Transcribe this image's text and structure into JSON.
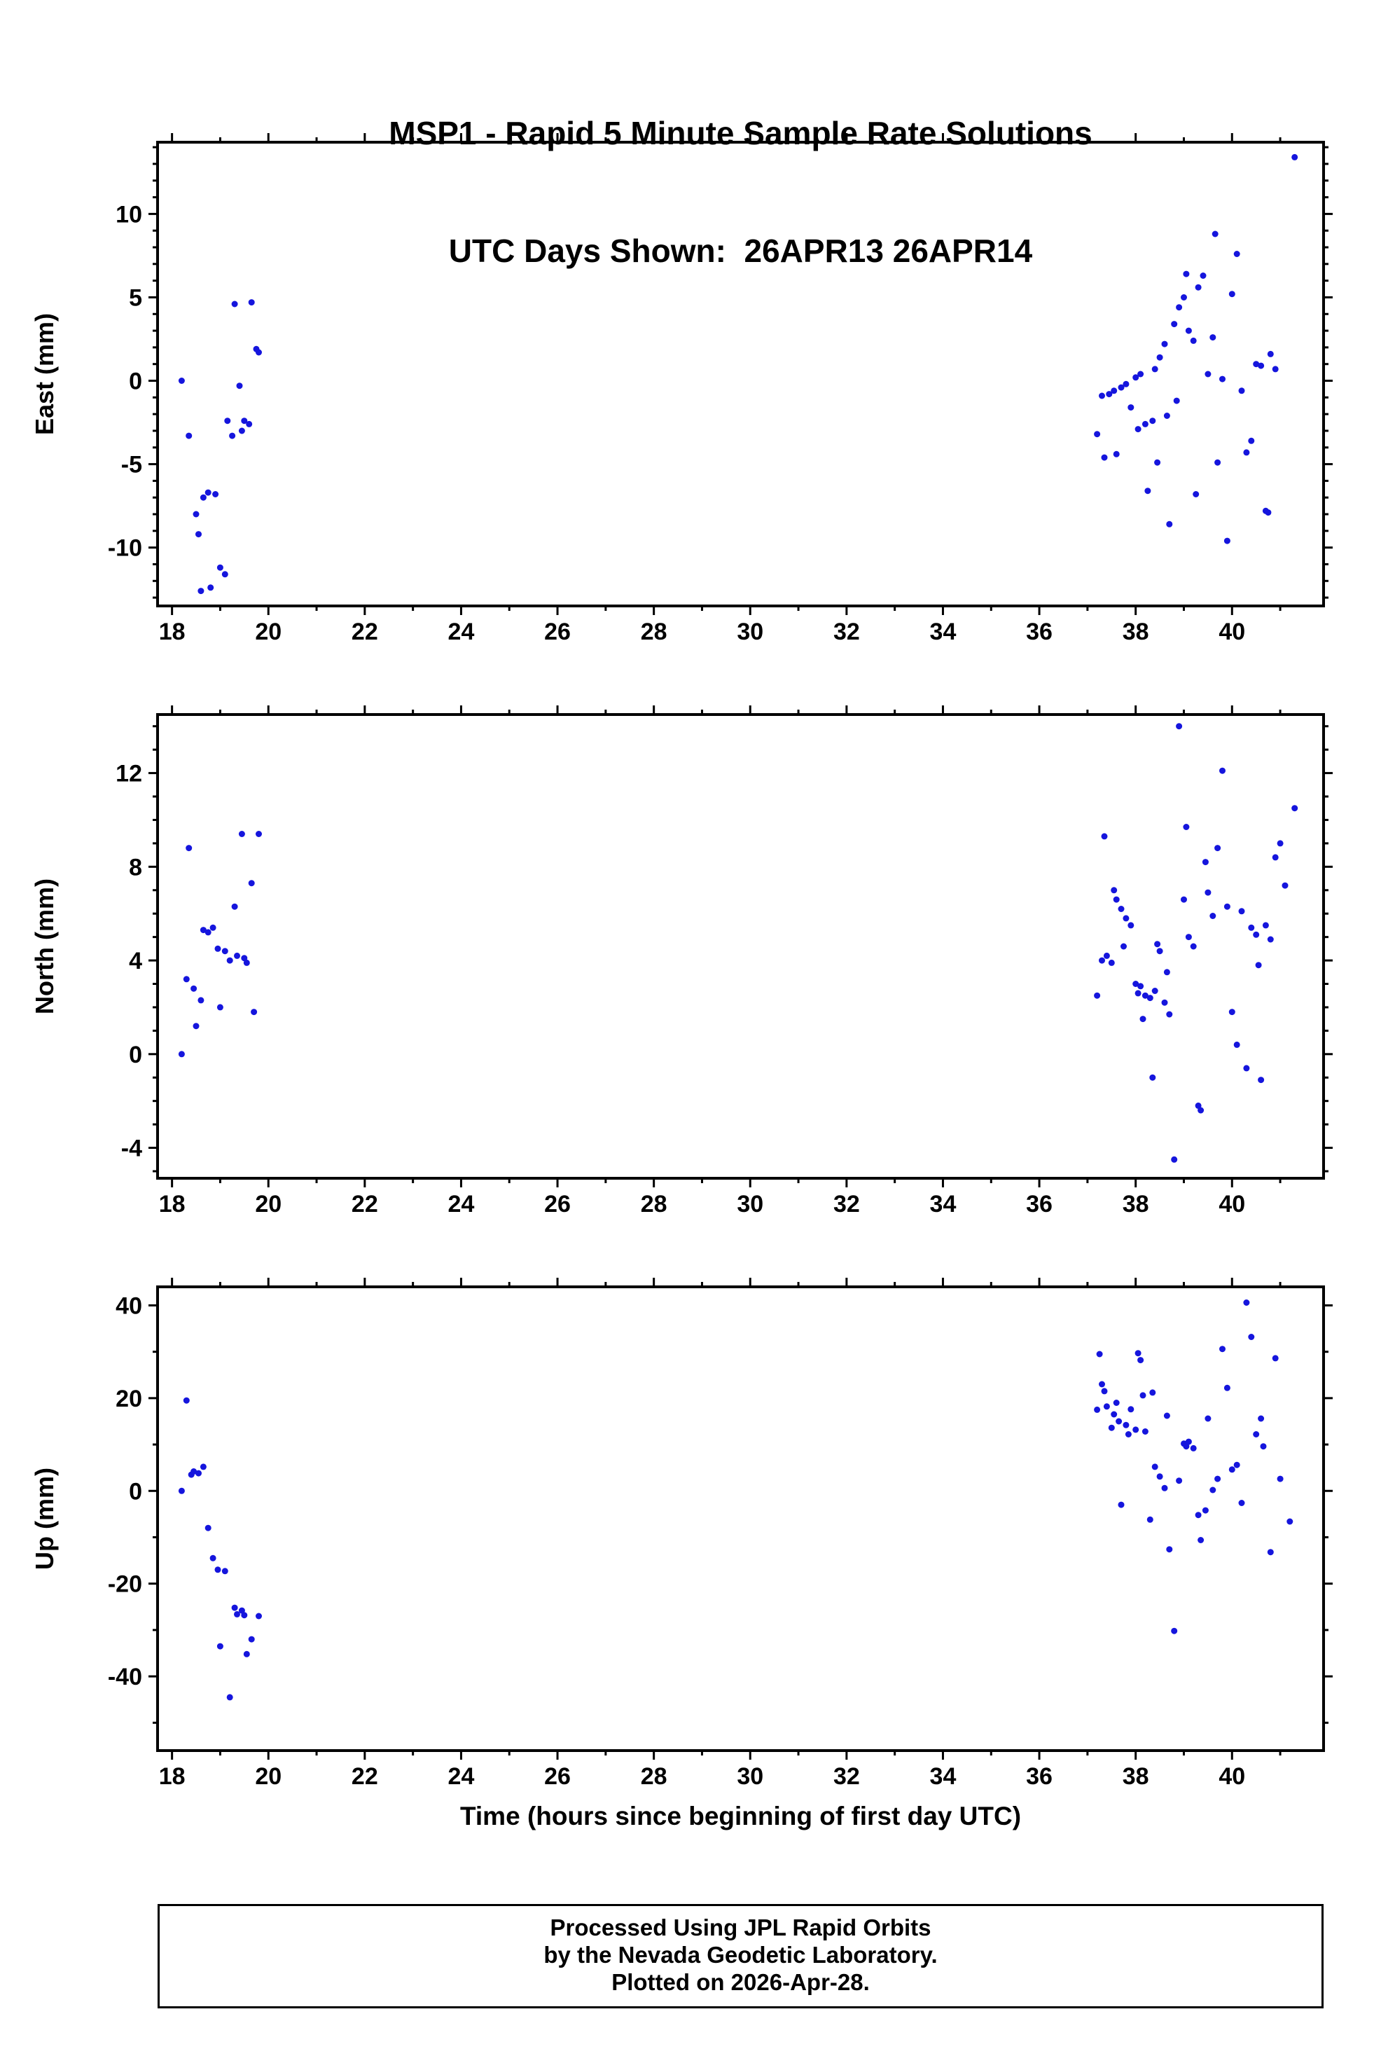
{
  "title": {
    "line1": "MSP1 - Rapid 5 Minute Sample Rate Solutions",
    "line2": "UTC Days Shown:  26APR13 26APR14"
  },
  "xlabel": "Time (hours since beginning of first day UTC)",
  "footer": {
    "line1": "Processed Using JPL Rapid Orbits",
    "line2": "by the Nevada Geodetic Laboratory.",
    "line3": "Plotted on 2026-Apr-28."
  },
  "point_color": "#1515dd",
  "frame_color": "#000000",
  "chart_data": [
    {
      "type": "scatter",
      "title": "MSP1 East component",
      "xlabel": "Time (hours since beginning of first day UTC)",
      "ylabel": "East (mm)",
      "xlim": [
        17.7,
        41.9
      ],
      "ylim": [
        -13.5,
        14.3
      ],
      "xticks": [
        18,
        20,
        22,
        24,
        26,
        28,
        30,
        32,
        34,
        36,
        38,
        40
      ],
      "yticks": [
        -10,
        -5,
        0,
        5,
        10
      ],
      "x_minor": 1,
      "y_minor": 1,
      "grid": false,
      "points": [
        [
          18.2,
          0.0
        ],
        [
          18.35,
          -3.3
        ],
        [
          18.5,
          -8.0
        ],
        [
          18.55,
          -9.2
        ],
        [
          18.6,
          -12.6
        ],
        [
          18.65,
          -7.0
        ],
        [
          18.75,
          -6.7
        ],
        [
          18.8,
          -12.4
        ],
        [
          18.9,
          -6.8
        ],
        [
          19.0,
          -11.2
        ],
        [
          19.1,
          -11.6
        ],
        [
          19.15,
          -2.4
        ],
        [
          19.25,
          -3.3
        ],
        [
          19.3,
          4.6
        ],
        [
          19.4,
          -0.3
        ],
        [
          19.45,
          -3.0
        ],
        [
          19.5,
          -2.4
        ],
        [
          19.6,
          -2.6
        ],
        [
          19.65,
          4.7
        ],
        [
          19.75,
          1.9
        ],
        [
          19.8,
          1.7
        ],
        [
          37.2,
          -3.2
        ],
        [
          37.3,
          -0.9
        ],
        [
          37.35,
          -4.6
        ],
        [
          37.45,
          -0.8
        ],
        [
          37.55,
          -0.6
        ],
        [
          37.6,
          -4.4
        ],
        [
          37.7,
          -0.4
        ],
        [
          37.8,
          -0.2
        ],
        [
          37.9,
          -1.6
        ],
        [
          38.0,
          0.2
        ],
        [
          38.05,
          -2.9
        ],
        [
          38.1,
          0.4
        ],
        [
          38.2,
          -2.6
        ],
        [
          38.25,
          -6.6
        ],
        [
          38.35,
          -2.4
        ],
        [
          38.4,
          0.7
        ],
        [
          38.45,
          -4.9
        ],
        [
          38.5,
          1.4
        ],
        [
          38.6,
          2.2
        ],
        [
          38.65,
          -2.1
        ],
        [
          38.7,
          -8.6
        ],
        [
          38.8,
          3.4
        ],
        [
          38.85,
          -1.2
        ],
        [
          38.9,
          4.4
        ],
        [
          39.0,
          5.0
        ],
        [
          39.05,
          6.4
        ],
        [
          39.1,
          3.0
        ],
        [
          39.2,
          2.4
        ],
        [
          39.25,
          -6.8
        ],
        [
          39.3,
          5.6
        ],
        [
          39.4,
          6.3
        ],
        [
          39.5,
          0.4
        ],
        [
          39.6,
          2.6
        ],
        [
          39.65,
          8.8
        ],
        [
          39.7,
          -4.9
        ],
        [
          39.8,
          0.1
        ],
        [
          39.9,
          -9.6
        ],
        [
          40.0,
          5.2
        ],
        [
          40.1,
          7.6
        ],
        [
          40.2,
          -0.6
        ],
        [
          40.3,
          -4.3
        ],
        [
          40.4,
          -3.6
        ],
        [
          40.5,
          1.0
        ],
        [
          40.6,
          0.9
        ],
        [
          40.7,
          -7.8
        ],
        [
          40.75,
          -7.9
        ],
        [
          40.8,
          1.6
        ],
        [
          40.9,
          0.7
        ],
        [
          41.3,
          13.4
        ]
      ]
    },
    {
      "type": "scatter",
      "title": "MSP1 North component",
      "xlabel": "Time (hours since beginning of first day UTC)",
      "ylabel": "North (mm)",
      "xlim": [
        17.7,
        41.9
      ],
      "ylim": [
        -5.3,
        14.5
      ],
      "xticks": [
        18,
        20,
        22,
        24,
        26,
        28,
        30,
        32,
        34,
        36,
        38,
        40
      ],
      "yticks": [
        -4,
        0,
        4,
        8,
        12
      ],
      "x_minor": 1,
      "y_minor": 1,
      "grid": false,
      "points": [
        [
          18.2,
          0.0
        ],
        [
          18.3,
          3.2
        ],
        [
          18.35,
          8.8
        ],
        [
          18.45,
          2.8
        ],
        [
          18.5,
          1.2
        ],
        [
          18.6,
          2.3
        ],
        [
          18.65,
          5.3
        ],
        [
          18.75,
          5.2
        ],
        [
          18.85,
          5.4
        ],
        [
          18.95,
          4.5
        ],
        [
          19.0,
          2.0
        ],
        [
          19.1,
          4.4
        ],
        [
          19.2,
          4.0
        ],
        [
          19.3,
          6.3
        ],
        [
          19.35,
          4.2
        ],
        [
          19.45,
          9.4
        ],
        [
          19.5,
          4.1
        ],
        [
          19.55,
          3.9
        ],
        [
          19.65,
          7.3
        ],
        [
          19.7,
          1.8
        ],
        [
          19.8,
          9.4
        ],
        [
          37.2,
          2.5
        ],
        [
          37.3,
          4.0
        ],
        [
          37.35,
          9.3
        ],
        [
          37.4,
          4.2
        ],
        [
          37.5,
          3.9
        ],
        [
          37.55,
          7.0
        ],
        [
          37.6,
          6.6
        ],
        [
          37.7,
          6.2
        ],
        [
          37.75,
          4.6
        ],
        [
          37.8,
          5.8
        ],
        [
          37.9,
          5.5
        ],
        [
          38.0,
          3.0
        ],
        [
          38.05,
          2.6
        ],
        [
          38.1,
          2.9
        ],
        [
          38.15,
          1.5
        ],
        [
          38.2,
          2.5
        ],
        [
          38.3,
          2.4
        ],
        [
          38.35,
          -1.0
        ],
        [
          38.4,
          2.7
        ],
        [
          38.45,
          4.7
        ],
        [
          38.5,
          4.4
        ],
        [
          38.6,
          2.2
        ],
        [
          38.65,
          3.5
        ],
        [
          38.7,
          1.7
        ],
        [
          38.8,
          -4.5
        ],
        [
          38.9,
          14.0
        ],
        [
          39.0,
          6.6
        ],
        [
          39.05,
          9.7
        ],
        [
          39.1,
          5.0
        ],
        [
          39.2,
          4.6
        ],
        [
          39.3,
          -2.2
        ],
        [
          39.35,
          -2.4
        ],
        [
          39.45,
          8.2
        ],
        [
          39.5,
          6.9
        ],
        [
          39.6,
          5.9
        ],
        [
          39.7,
          8.8
        ],
        [
          39.8,
          12.1
        ],
        [
          39.9,
          6.3
        ],
        [
          40.0,
          1.8
        ],
        [
          40.1,
          0.4
        ],
        [
          40.2,
          6.1
        ],
        [
          40.3,
          -0.6
        ],
        [
          40.4,
          5.4
        ],
        [
          40.5,
          5.1
        ],
        [
          40.55,
          3.8
        ],
        [
          40.6,
          -1.1
        ],
        [
          40.7,
          5.5
        ],
        [
          40.8,
          4.9
        ],
        [
          40.9,
          8.4
        ],
        [
          41.0,
          9.0
        ],
        [
          41.1,
          7.2
        ],
        [
          41.3,
          10.5
        ]
      ]
    },
    {
      "type": "scatter",
      "title": "MSP1 Up component",
      "xlabel": "Time (hours since beginning of first day UTC)",
      "ylabel": "Up (mm)",
      "xlim": [
        17.7,
        41.9
      ],
      "ylim": [
        -56,
        44
      ],
      "xticks": [
        18,
        20,
        22,
        24,
        26,
        28,
        30,
        32,
        34,
        36,
        38,
        40
      ],
      "yticks": [
        -40,
        -20,
        0,
        20,
        40
      ],
      "x_minor": 1,
      "y_minor": 10,
      "grid": false,
      "points": [
        [
          18.2,
          0.0
        ],
        [
          18.3,
          19.5
        ],
        [
          18.4,
          3.5
        ],
        [
          18.45,
          4.2
        ],
        [
          18.55,
          3.8
        ],
        [
          18.65,
          5.2
        ],
        [
          18.75,
          -8.0
        ],
        [
          18.85,
          -14.5
        ],
        [
          18.95,
          -17.0
        ],
        [
          19.0,
          -33.5
        ],
        [
          19.1,
          -17.3
        ],
        [
          19.2,
          -44.5
        ],
        [
          19.3,
          -25.2
        ],
        [
          19.35,
          -26.6
        ],
        [
          19.45,
          -25.8
        ],
        [
          19.5,
          -26.8
        ],
        [
          19.55,
          -35.2
        ],
        [
          19.65,
          -32.0
        ],
        [
          19.8,
          -27.0
        ],
        [
          37.2,
          17.5
        ],
        [
          37.25,
          29.5
        ],
        [
          37.3,
          23.0
        ],
        [
          37.35,
          21.5
        ],
        [
          37.4,
          18.2
        ],
        [
          37.5,
          13.6
        ],
        [
          37.55,
          16.5
        ],
        [
          37.6,
          19.0
        ],
        [
          37.65,
          15.0
        ],
        [
          37.7,
          -3.0
        ],
        [
          37.8,
          14.2
        ],
        [
          37.85,
          12.2
        ],
        [
          37.9,
          17.6
        ],
        [
          38.0,
          13.2
        ],
        [
          38.05,
          29.7
        ],
        [
          38.1,
          28.2
        ],
        [
          38.15,
          20.6
        ],
        [
          38.2,
          12.8
        ],
        [
          38.3,
          -6.2
        ],
        [
          38.35,
          21.2
        ],
        [
          38.4,
          5.2
        ],
        [
          38.5,
          3.1
        ],
        [
          38.6,
          0.6
        ],
        [
          38.65,
          16.2
        ],
        [
          38.7,
          -12.6
        ],
        [
          38.8,
          -30.2
        ],
        [
          38.9,
          2.2
        ],
        [
          39.0,
          10.2
        ],
        [
          39.05,
          9.6
        ],
        [
          39.1,
          10.6
        ],
        [
          39.2,
          9.2
        ],
        [
          39.3,
          -5.2
        ],
        [
          39.35,
          -10.6
        ],
        [
          39.45,
          -4.2
        ],
        [
          39.5,
          15.6
        ],
        [
          39.6,
          0.2
        ],
        [
          39.7,
          2.6
        ],
        [
          39.8,
          30.6
        ],
        [
          39.9,
          22.2
        ],
        [
          40.0,
          4.6
        ],
        [
          40.1,
          5.6
        ],
        [
          40.2,
          -2.6
        ],
        [
          40.3,
          40.6
        ],
        [
          40.4,
          33.2
        ],
        [
          40.5,
          12.2
        ],
        [
          40.6,
          15.6
        ],
        [
          40.65,
          9.6
        ],
        [
          40.8,
          -13.2
        ],
        [
          40.9,
          28.6
        ],
        [
          41.0,
          2.6
        ],
        [
          41.2,
          -6.6
        ]
      ]
    }
  ]
}
